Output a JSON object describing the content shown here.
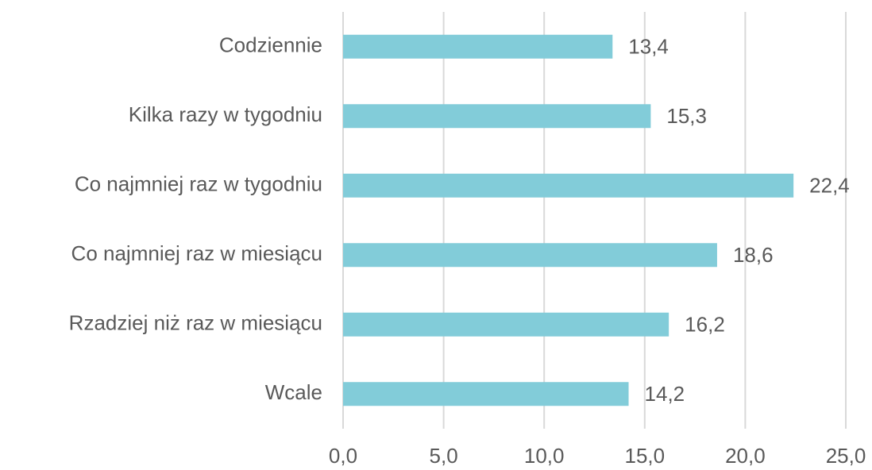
{
  "chart_data": {
    "type": "bar",
    "orientation": "horizontal",
    "categories": [
      "Codziennie",
      "Kilka razy w tygodniu",
      "Co najmniej raz w tygodniu",
      "Co najmniej raz w miesiącu",
      "Rzadziej niż raz w miesiącu",
      "Wcale"
    ],
    "values": [
      13.4,
      15.3,
      22.4,
      18.6,
      16.2,
      14.2
    ],
    "value_labels": [
      "13,4",
      "15,3",
      "22,4",
      "18,6",
      "16,2",
      "14,2"
    ],
    "color": "#82ccd9",
    "xlim": [
      0,
      25
    ],
    "xticks": [
      {
        "value": 0,
        "label": "0,0"
      },
      {
        "value": 5,
        "label": "5,0"
      },
      {
        "value": 10,
        "label": "10,0"
      },
      {
        "value": 15,
        "label": "15,0"
      },
      {
        "value": 20,
        "label": "20,0"
      },
      {
        "value": 25,
        "label": "25,0"
      }
    ],
    "grid": true
  }
}
